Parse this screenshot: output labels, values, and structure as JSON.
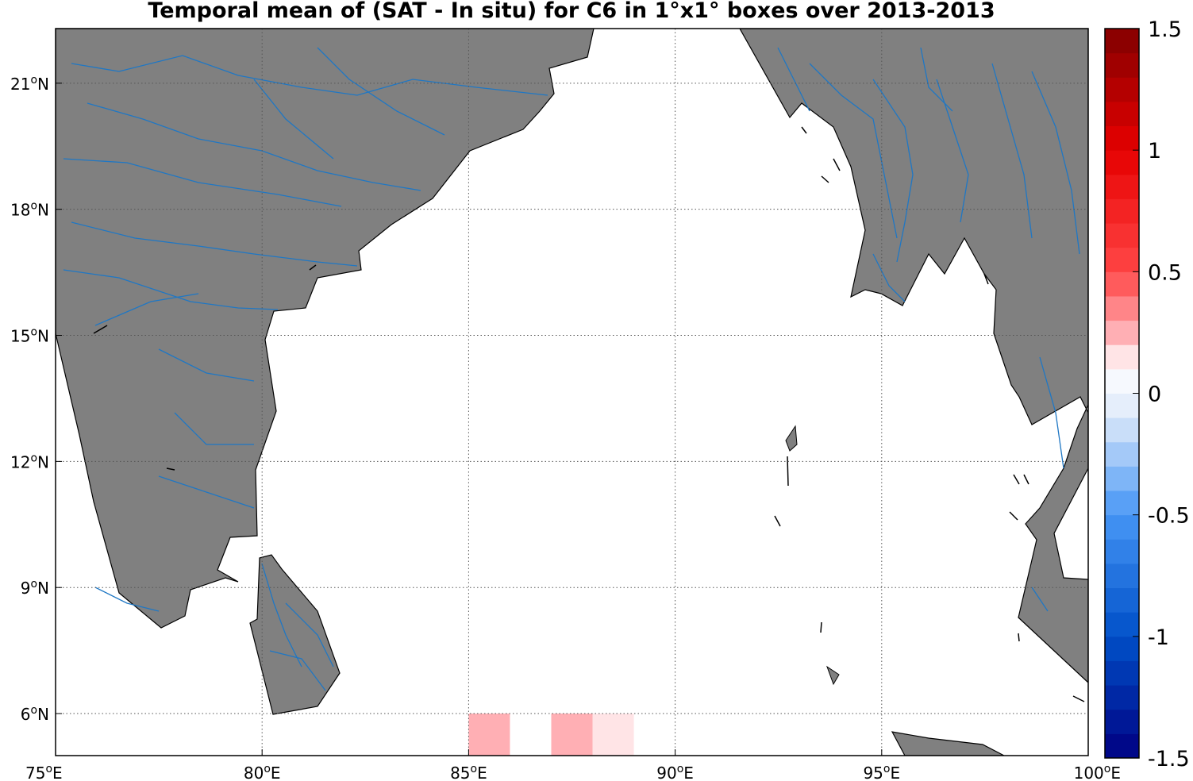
{
  "title": "Temporal mean of (SAT - In situ) for C6 in 1°x1° boxes over 2013-2013",
  "map": {
    "lon_ticks": [
      "75",
      "80",
      "85",
      "90",
      "95",
      "100"
    ],
    "lat_ticks": [
      "6",
      "9",
      "12",
      "15",
      "18",
      "21"
    ],
    "lon_suffix": "E",
    "lat_suffix": "N",
    "degree": "o",
    "land_color": "#808080",
    "river_color": "#1f77c4",
    "extent": {
      "lon": [
        75,
        100
      ],
      "lat": [
        5,
        22.3
      ]
    }
  },
  "boxes": [
    {
      "lon": 85,
      "lat": 5,
      "value": 0.25
    },
    {
      "lon": 87,
      "lat": 5,
      "value": 0.25
    },
    {
      "lon": 88,
      "lat": 5,
      "value": 0.15
    }
  ],
  "colorbar": {
    "ticks": [
      "1.5",
      "1",
      "0.5",
      "0",
      "-0.5",
      "-1",
      "-1.5"
    ],
    "range": [
      -1.5,
      1.5
    ]
  }
}
